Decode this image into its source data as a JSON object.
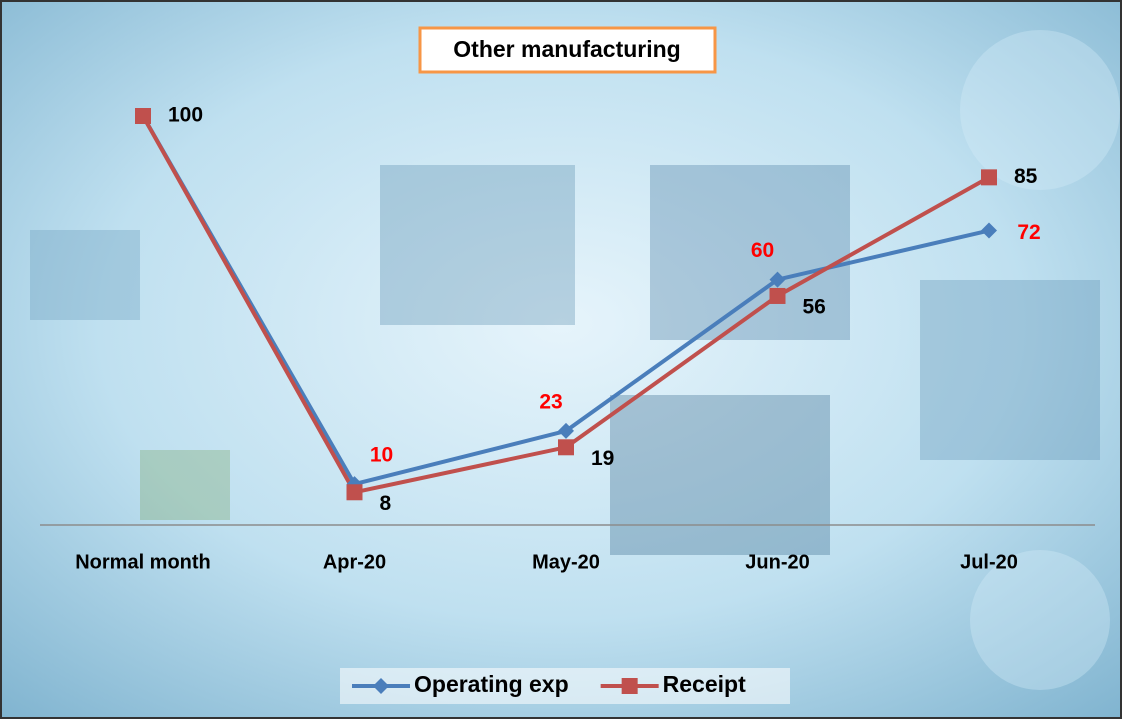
{
  "chart_data": {
    "type": "line",
    "title": "Other manufacturing",
    "categories": [
      "Normal month",
      "Apr-20",
      "May-20",
      "Jun-20",
      "Jul-20"
    ],
    "series": [
      {
        "name": "Operating exp",
        "color": "#4a7ebb",
        "values": [
          100,
          10,
          23,
          60,
          72
        ]
      },
      {
        "name": "Receipt",
        "color": "#c0504d",
        "values": [
          100,
          8,
          19,
          56,
          85
        ]
      }
    ],
    "ylim": [
      0,
      100
    ],
    "legend": "bottom"
  }
}
